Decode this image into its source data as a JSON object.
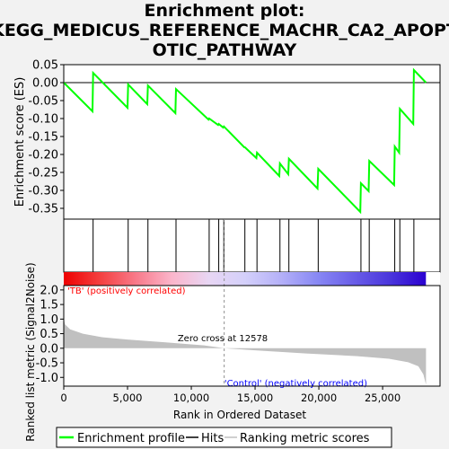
{
  "chart_data": {
    "type": "line",
    "title_line1": "Enrichment plot:",
    "title_line2": "KEGG_MEDICUS_REFERENCE_MACHR_CA2_APOPT",
    "title_line3": "OTIC_PATHWAY",
    "ylabel_top": "Enrichment score (ES)",
    "ylabel_bottom": "Ranked list metric (Signal2Noise)",
    "xlabel": "Rank in Ordered Dataset",
    "x_range": [
      0,
      29500
    ],
    "es_ylim": [
      -0.38,
      0.05
    ],
    "es_yticks": [
      "0.05",
      "0.00",
      "-0.05",
      "-0.10",
      "-0.15",
      "-0.20",
      "-0.25",
      "-0.30",
      "-0.35"
    ],
    "es_ytick_values": [
      0.05,
      0.0,
      -0.05,
      -0.1,
      -0.15,
      -0.2,
      -0.25,
      -0.3,
      -0.35
    ],
    "metric_ylim": [
      -1.3,
      2.15
    ],
    "metric_yticks": [
      "2.0",
      "1.5",
      "1.0",
      "0.5",
      "0.0",
      "-0.5",
      "-1.0"
    ],
    "metric_ytick_values": [
      2.0,
      1.5,
      1.0,
      0.5,
      0.0,
      -0.5,
      -1.0
    ],
    "xticks": [
      "0",
      "5,000",
      "10,000",
      "15,000",
      "20,000",
      "25,000"
    ],
    "xtick_values": [
      0,
      5000,
      10000,
      15000,
      20000,
      25000
    ],
    "hits": [
      2300,
      5050,
      6600,
      8800,
      11400,
      12150,
      12550,
      14200,
      15150,
      16950,
      17650,
      19950,
      23300,
      23950,
      25950,
      26350,
      27450
    ],
    "es_points": [
      {
        "x": 0,
        "y": 0.0
      },
      {
        "x": 2250,
        "y": -0.08
      },
      {
        "x": 2300,
        "y": 0.027
      },
      {
        "x": 5000,
        "y": -0.07
      },
      {
        "x": 5050,
        "y": -0.005
      },
      {
        "x": 6550,
        "y": -0.06
      },
      {
        "x": 6600,
        "y": -0.008
      },
      {
        "x": 8750,
        "y": -0.085
      },
      {
        "x": 8800,
        "y": -0.018
      },
      {
        "x": 11350,
        "y": -0.103
      },
      {
        "x": 11400,
        "y": -0.1
      },
      {
        "x": 12100,
        "y": -0.118
      },
      {
        "x": 12150,
        "y": -0.115
      },
      {
        "x": 12500,
        "y": -0.125
      },
      {
        "x": 12550,
        "y": -0.122
      },
      {
        "x": 14150,
        "y": -0.18
      },
      {
        "x": 14200,
        "y": -0.18
      },
      {
        "x": 15100,
        "y": -0.21
      },
      {
        "x": 15150,
        "y": -0.195
      },
      {
        "x": 16900,
        "y": -0.26
      },
      {
        "x": 16950,
        "y": -0.225
      },
      {
        "x": 17600,
        "y": -0.255
      },
      {
        "x": 17650,
        "y": -0.212
      },
      {
        "x": 19900,
        "y": -0.295
      },
      {
        "x": 19950,
        "y": -0.24
      },
      {
        "x": 23250,
        "y": -0.36
      },
      {
        "x": 23300,
        "y": -0.28
      },
      {
        "x": 23900,
        "y": -0.302
      },
      {
        "x": 23950,
        "y": -0.218
      },
      {
        "x": 25900,
        "y": -0.285
      },
      {
        "x": 25950,
        "y": -0.178
      },
      {
        "x": 26300,
        "y": -0.195
      },
      {
        "x": 26350,
        "y": -0.073
      },
      {
        "x": 27400,
        "y": -0.115
      },
      {
        "x": 27450,
        "y": 0.035
      },
      {
        "x": 28400,
        "y": 0.0
      }
    ],
    "metric_profile": [
      {
        "x": 0,
        "y": 1.0
      },
      {
        "x": 100,
        "y": 0.82
      },
      {
        "x": 500,
        "y": 0.65
      },
      {
        "x": 1500,
        "y": 0.5
      },
      {
        "x": 3000,
        "y": 0.38
      },
      {
        "x": 5000,
        "y": 0.3
      },
      {
        "x": 8000,
        "y": 0.2
      },
      {
        "x": 11000,
        "y": 0.1
      },
      {
        "x": 12578,
        "y": 0.0
      },
      {
        "x": 15000,
        "y": -0.07
      },
      {
        "x": 19000,
        "y": -0.18
      },
      {
        "x": 23000,
        "y": -0.27
      },
      {
        "x": 25500,
        "y": -0.36
      },
      {
        "x": 27000,
        "y": -0.48
      },
      {
        "x": 27800,
        "y": -0.62
      },
      {
        "x": 28200,
        "y": -0.9
      },
      {
        "x": 28400,
        "y": -1.25
      }
    ],
    "zero_cross_label": "Zero cross at 12578",
    "zero_cross_x": 12578,
    "pos_label": "'TB' (positively correlated)",
    "neg_label": "'Control' (negatively correlated)",
    "legend": {
      "enrichment": "Enrichment profile",
      "hits": "Hits",
      "ranking": "Ranking metric scores"
    },
    "colors": {
      "es_line": "#00ff00",
      "hit": "#000000",
      "metric_fill": "#c0c0c0",
      "pos_label": "#ff0000",
      "neg_label": "#0000ff",
      "zero_cross_line": "#909090"
    },
    "heatmap_colors": [
      "#ee0000",
      "#f44040",
      "#f87a8a",
      "#fbb6cc",
      "#e8d6f4",
      "#d4d0fa",
      "#b4b0f8",
      "#8888f4",
      "#6a5ee8",
      "#4a36dc",
      "#2a00d0"
    ]
  }
}
